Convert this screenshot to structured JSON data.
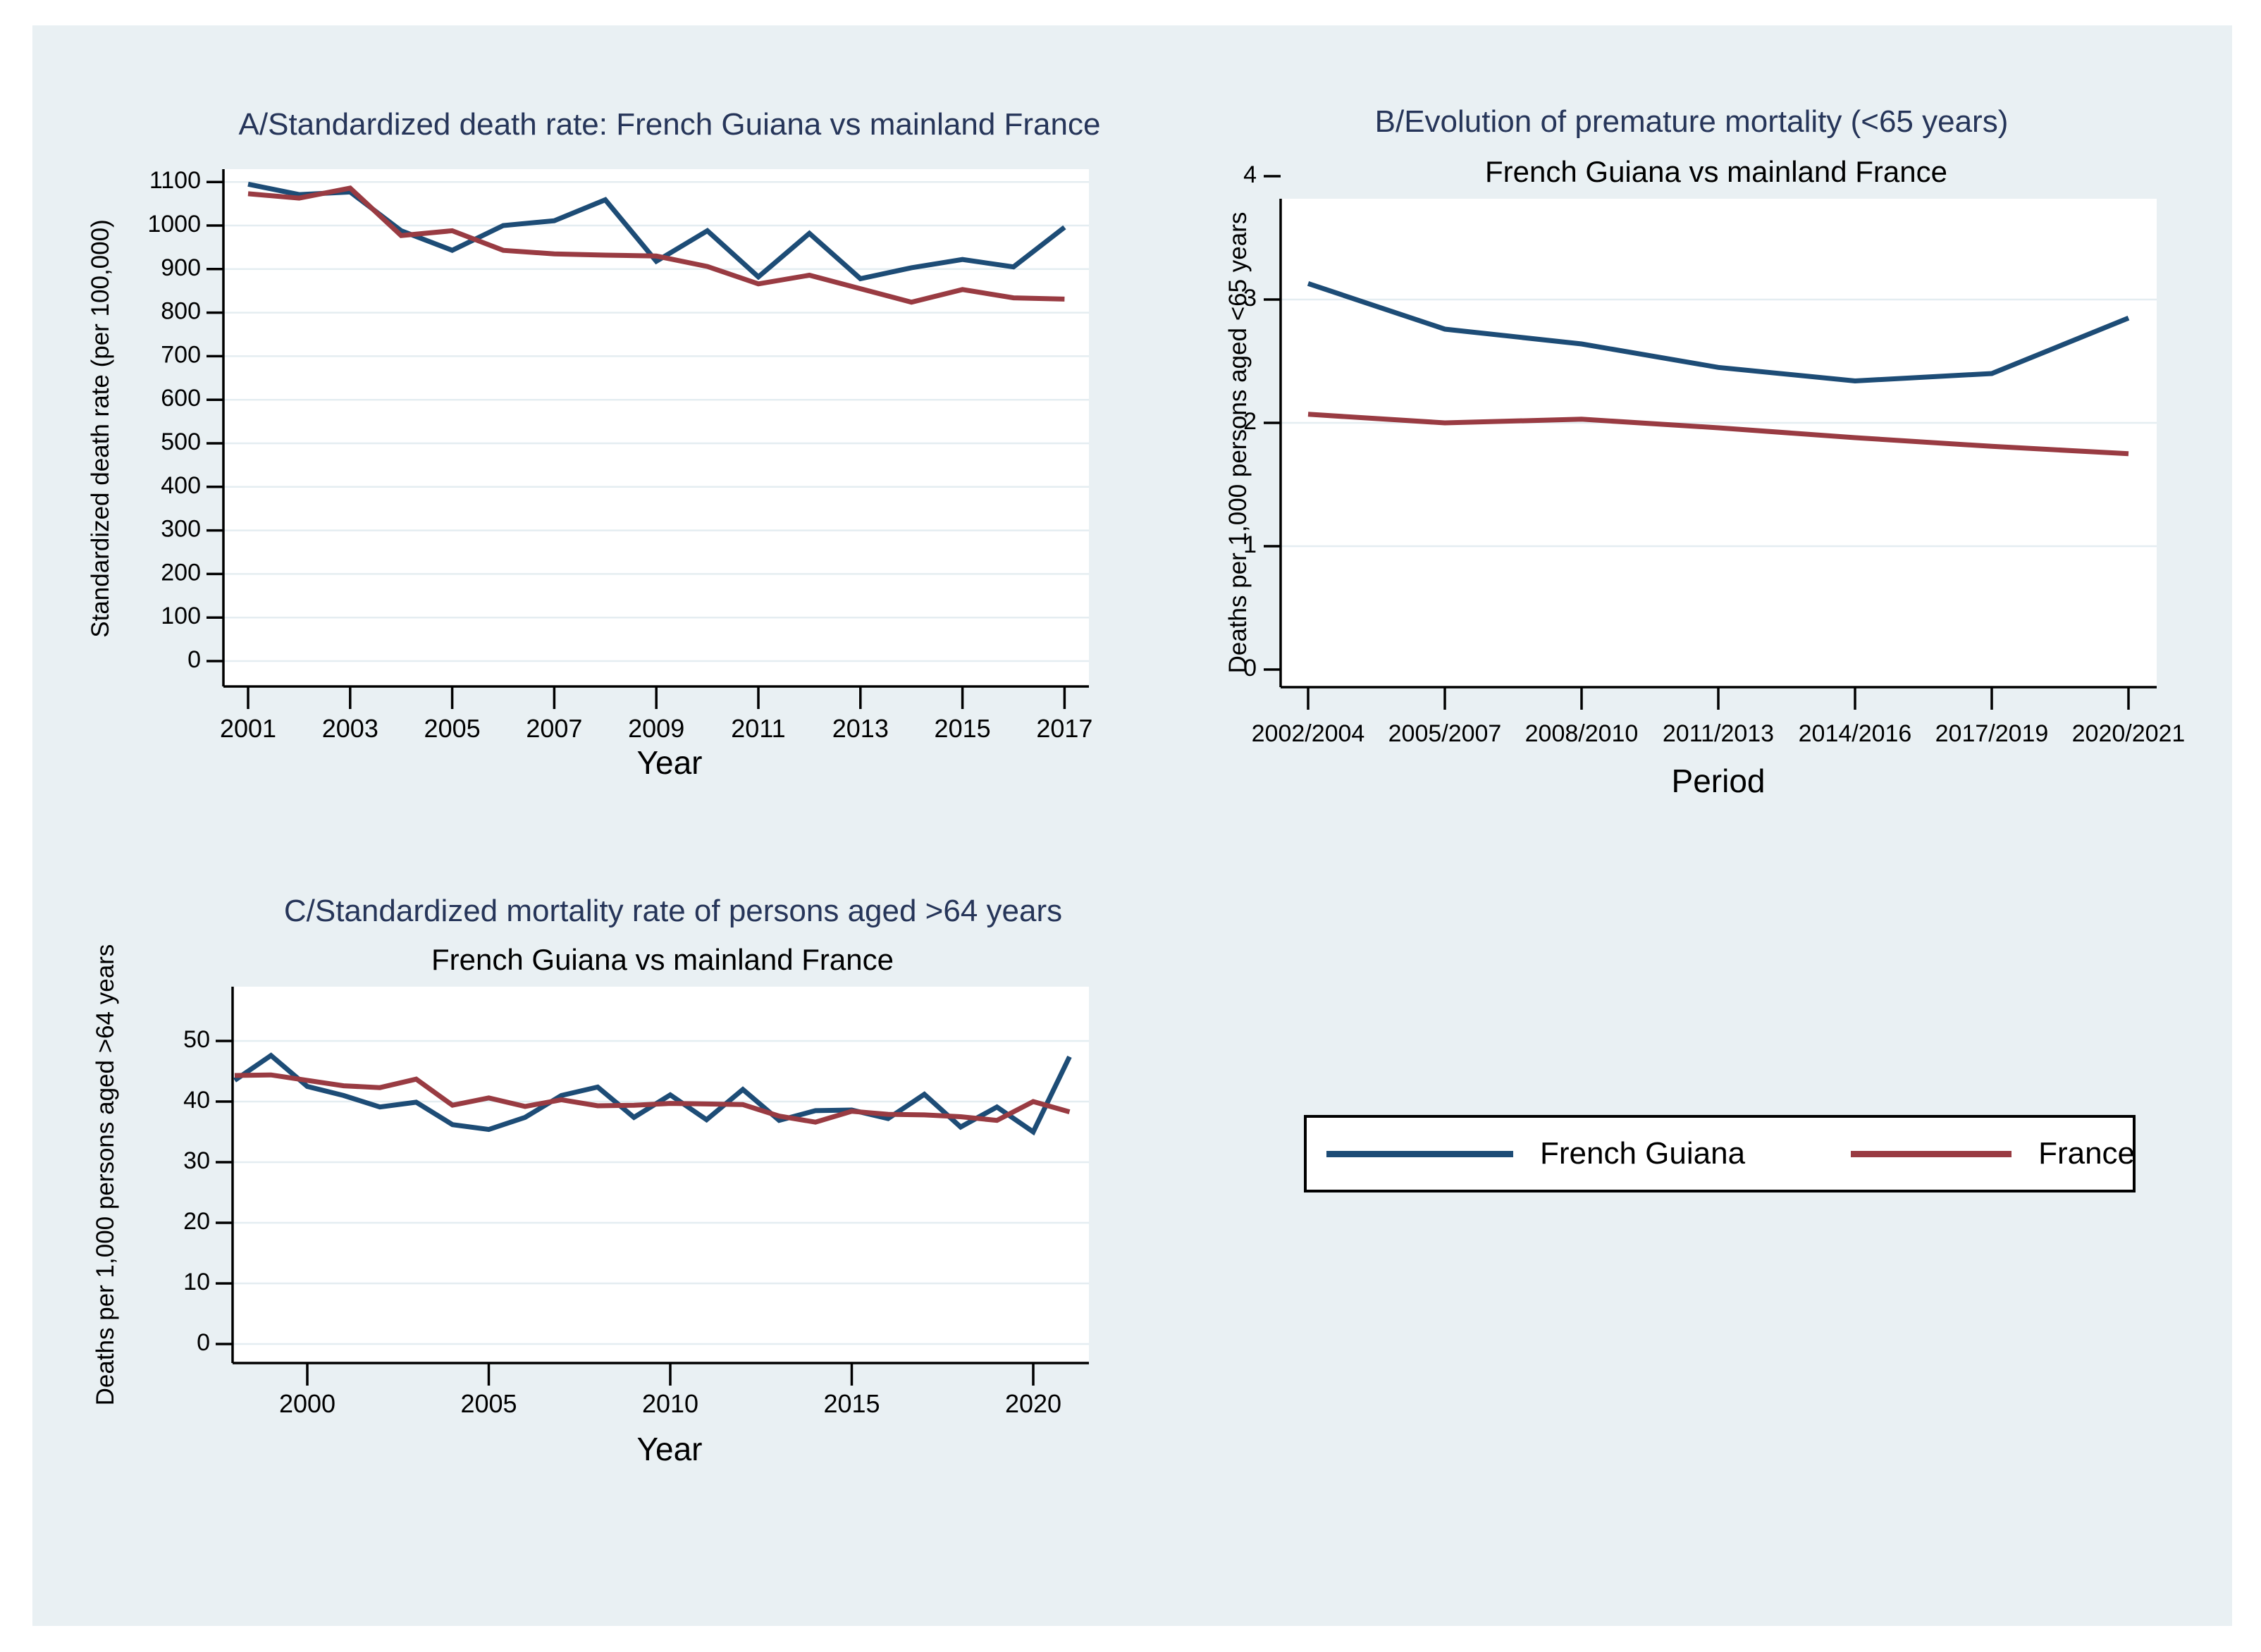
{
  "page": {
    "background": "#ffffff",
    "canvas_bg": "#e9f0f3",
    "plot_bg": "#ffffff",
    "grid_color": "#e4edf1",
    "axis_color": "#000000",
    "title_color": "#263559",
    "text_color": "#000000"
  },
  "legend": {
    "items": [
      {
        "label": "French Guiana",
        "color": "#1d4c76"
      },
      {
        "label": "France",
        "color": "#993b42"
      }
    ]
  },
  "chart_data": [
    {
      "id": "A",
      "type": "line",
      "title": "A/Standardized death rate: French Guiana vs mainland France",
      "subtitle": "",
      "xlabel": "Year",
      "ylabel": "Standardized death rate (per 100,000)",
      "ylim": [
        0,
        1100
      ],
      "yticks": [
        0,
        100,
        200,
        300,
        400,
        500,
        600,
        700,
        800,
        900,
        1000,
        1100
      ],
      "x": [
        2001,
        2002,
        2003,
        2004,
        2005,
        2006,
        2007,
        2008,
        2009,
        2010,
        2011,
        2012,
        2013,
        2014,
        2015,
        2016,
        2017
      ],
      "xticks": [
        2001,
        2003,
        2005,
        2007,
        2009,
        2011,
        2013,
        2015,
        2017
      ],
      "grid": true,
      "legend_position": "bottom-right-external",
      "series": [
        {
          "name": "French Guiana",
          "color": "#1d4c76",
          "values": [
            1095,
            1071,
            1077,
            988,
            943,
            1000,
            1011,
            1059,
            918,
            988,
            882,
            982,
            878,
            903,
            922,
            905,
            996
          ]
        },
        {
          "name": "France",
          "color": "#993b42",
          "values": [
            1073,
            1063,
            1086,
            977,
            988,
            943,
            935,
            932,
            930,
            906,
            866,
            886,
            855,
            824,
            853,
            834,
            831
          ]
        }
      ]
    },
    {
      "id": "B",
      "type": "line",
      "title": "B/Evolution of premature mortality (<65 years)",
      "subtitle": "French Guiana vs mainland France",
      "xlabel": "Period",
      "ylabel": "Deaths per 1,000 persons aged <65 years",
      "ylim": [
        0,
        4
      ],
      "yticks": [
        0,
        1,
        2,
        3,
        4
      ],
      "grid_yticks": [
        1,
        2,
        3
      ],
      "categories": [
        "2002/2004",
        "2005/2007",
        "2008/2010",
        "2011/2013",
        "2014/2016",
        "2017/2019",
        "2020/2021"
      ],
      "grid": true,
      "series": [
        {
          "name": "French Guiana",
          "color": "#1d4c76",
          "values": [
            3.13,
            2.76,
            2.64,
            2.45,
            2.34,
            2.4,
            2.85
          ]
        },
        {
          "name": "France",
          "color": "#993b42",
          "values": [
            2.07,
            2.0,
            2.03,
            1.96,
            1.88,
            1.81,
            1.75
          ]
        }
      ]
    },
    {
      "id": "C",
      "type": "line",
      "title": "C/Standardized mortality rate of persons aged >64 years",
      "subtitle": "French Guiana vs mainland France",
      "xlabel": "Year",
      "ylabel": "Deaths per 1,000 persons aged >64 years",
      "ylim": [
        0,
        50
      ],
      "yticks": [
        0,
        10,
        20,
        30,
        40,
        50
      ],
      "x": [
        1998,
        1999,
        2000,
        2001,
        2002,
        2003,
        2004,
        2005,
        2006,
        2007,
        2008,
        2009,
        2010,
        2011,
        2012,
        2013,
        2014,
        2015,
        2016,
        2017,
        2018,
        2019,
        2020,
        2021
      ],
      "xticks": [
        2000,
        2005,
        2010,
        2015,
        2020
      ],
      "grid": true,
      "series": [
        {
          "name": "French Guiana",
          "color": "#1d4c76",
          "values": [
            43.5,
            47.6,
            42.5,
            41.0,
            39.1,
            39.9,
            36.2,
            35.4,
            37.4,
            41.0,
            42.4,
            37.4,
            41.1,
            37.0,
            42.0,
            36.9,
            38.5,
            38.6,
            37.2,
            41.2,
            35.8,
            39.1,
            35.0,
            47.4
          ]
        },
        {
          "name": "France",
          "color": "#993b42",
          "values": [
            44.3,
            44.4,
            43.5,
            42.6,
            42.3,
            43.7,
            39.4,
            40.6,
            39.2,
            40.3,
            39.3,
            39.4,
            39.7,
            39.6,
            39.5,
            37.6,
            36.6,
            38.4,
            37.9,
            37.8,
            37.5,
            36.9,
            40.0,
            38.3
          ]
        }
      ]
    }
  ]
}
